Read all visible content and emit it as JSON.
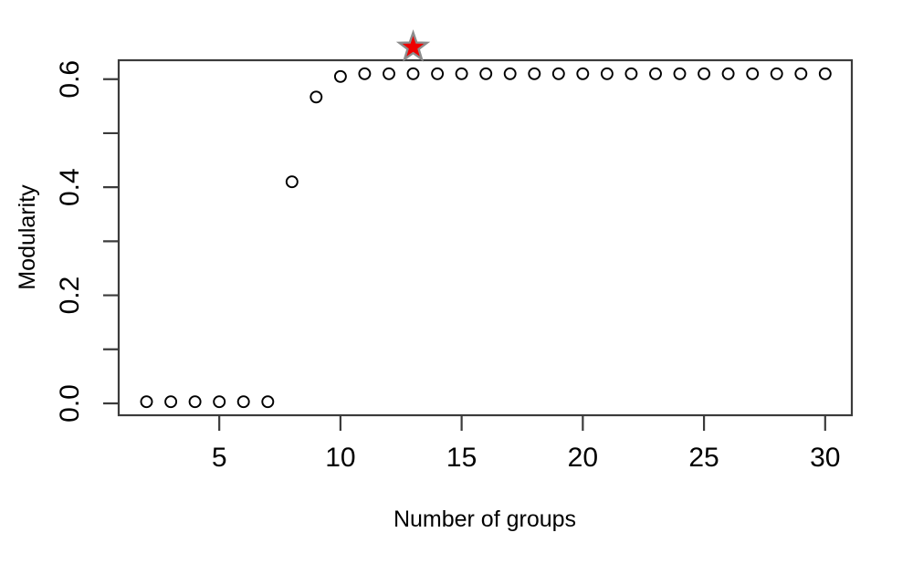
{
  "figure": {
    "background": "#ffffff"
  },
  "chart_data": {
    "type": "scatter",
    "title": "",
    "xlabel": "Number of groups",
    "ylabel": "Modularity",
    "x": [
      2,
      3,
      4,
      5,
      6,
      7,
      8,
      9,
      10,
      11,
      12,
      13,
      14,
      15,
      16,
      17,
      18,
      19,
      20,
      21,
      22,
      23,
      24,
      25,
      26,
      27,
      28,
      29,
      30
    ],
    "y": [
      0.003,
      0.003,
      0.003,
      0.003,
      0.003,
      0.003,
      0.41,
      0.567,
      0.605,
      0.61,
      0.61,
      0.61,
      0.61,
      0.61,
      0.61,
      0.61,
      0.61,
      0.61,
      0.61,
      0.61,
      0.61,
      0.61,
      0.61,
      0.61,
      0.61,
      0.61,
      0.61,
      0.61,
      0.61
    ],
    "xlim": [
      0.85,
      31.1
    ],
    "ylim": [
      -0.022,
      0.635
    ],
    "x_ticks": [
      5,
      10,
      15,
      20,
      25,
      30
    ],
    "x_tick_labels": [
      "5",
      "10",
      "15",
      "20",
      "25",
      "30"
    ],
    "y_ticks": [
      0,
      0.1,
      0.2,
      0.3,
      0.4,
      0.5,
      0.6
    ],
    "y_tick_labels": [
      "0.0",
      "",
      "0.2",
      "",
      "0.4",
      "",
      "0.6"
    ],
    "grid": false,
    "legend": null,
    "marker": {
      "shape": "open-circle",
      "radius_px": 6,
      "color": "#000000",
      "stroke_width": 1.9
    },
    "annotations": [
      {
        "type": "star",
        "meaning": "optimal number of groups",
        "x": 13,
        "y": 0.659,
        "fill": "#ee0000",
        "stroke": "#8c8c8c",
        "outer_radius_px": 16,
        "inner_radius_px": 6.4
      }
    ],
    "axis_color": "#3b3b3b",
    "text_color": "#000000"
  }
}
